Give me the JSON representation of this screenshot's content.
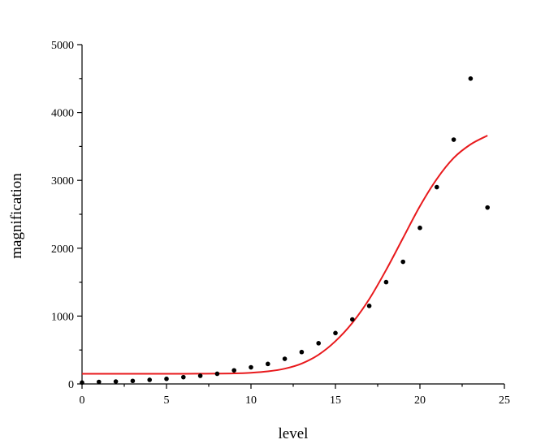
{
  "chart_data": {
    "type": "scatter",
    "xlabel": "level",
    "ylabel": "magnification",
    "xlim": [
      0,
      25
    ],
    "ylim": [
      0,
      5000
    ],
    "x_ticks": [
      0,
      5,
      10,
      15,
      20,
      25
    ],
    "y_ticks": [
      0,
      1000,
      2000,
      3000,
      4000,
      5000
    ],
    "grid": false,
    "series": [
      {
        "type": "scatter",
        "color": "#000000",
        "points": [
          {
            "x": 0,
            "y": 20
          },
          {
            "x": 1,
            "y": 30
          },
          {
            "x": 2,
            "y": 35
          },
          {
            "x": 3,
            "y": 45
          },
          {
            "x": 4,
            "y": 60
          },
          {
            "x": 5,
            "y": 75
          },
          {
            "x": 6,
            "y": 100
          },
          {
            "x": 7,
            "y": 120
          },
          {
            "x": 8,
            "y": 150
          },
          {
            "x": 9,
            "y": 200
          },
          {
            "x": 10,
            "y": 245
          },
          {
            "x": 11,
            "y": 295
          },
          {
            "x": 12,
            "y": 370
          },
          {
            "x": 13,
            "y": 470
          },
          {
            "x": 14,
            "y": 600
          },
          {
            "x": 15,
            "y": 750
          },
          {
            "x": 16,
            "y": 950
          },
          {
            "x": 17,
            "y": 1150
          },
          {
            "x": 18,
            "y": 1500
          },
          {
            "x": 19,
            "y": 1800
          },
          {
            "x": 20,
            "y": 2300
          },
          {
            "x": 21,
            "y": 2900
          },
          {
            "x": 22,
            "y": 3600
          },
          {
            "x": 23,
            "y": 4500
          },
          {
            "x": 24,
            "y": 2600
          }
        ]
      },
      {
        "type": "line",
        "color": "#e8191c",
        "points": [
          {
            "x": 0,
            "y": 150
          },
          {
            "x": 2,
            "y": 150
          },
          {
            "x": 4,
            "y": 150
          },
          {
            "x": 6,
            "y": 150
          },
          {
            "x": 8,
            "y": 152
          },
          {
            "x": 9,
            "y": 155
          },
          {
            "x": 10,
            "y": 165
          },
          {
            "x": 11,
            "y": 185
          },
          {
            "x": 12,
            "y": 225
          },
          {
            "x": 13,
            "y": 300
          },
          {
            "x": 14,
            "y": 430
          },
          {
            "x": 15,
            "y": 630
          },
          {
            "x": 16,
            "y": 900
          },
          {
            "x": 17,
            "y": 1250
          },
          {
            "x": 18,
            "y": 1680
          },
          {
            "x": 19,
            "y": 2150
          },
          {
            "x": 20,
            "y": 2620
          },
          {
            "x": 21,
            "y": 3020
          },
          {
            "x": 22,
            "y": 3330
          },
          {
            "x": 23,
            "y": 3530
          },
          {
            "x": 24,
            "y": 3660
          }
        ]
      }
    ]
  }
}
